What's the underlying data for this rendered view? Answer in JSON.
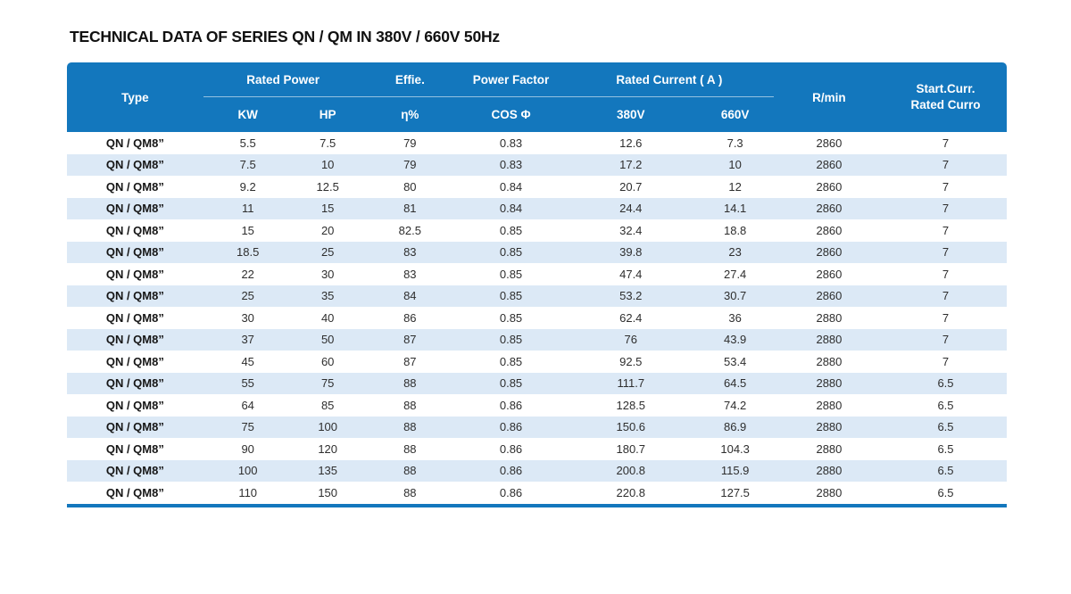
{
  "title": "TECHNICAL DATA OF SERIES QN / QM IN 380V / 660V 50Hz",
  "colors": {
    "header_blue": "#1377BD",
    "stripe_light_blue": "#DCE9F6",
    "bottom_rule_blue": "#1377BD",
    "header_text": "#FFFFFF",
    "body_text": "#2E2E2E"
  },
  "table": {
    "group_headers": {
      "type": "Type",
      "rated_power": "Rated Power",
      "effie": "Effie.",
      "power_factor": "Power Factor",
      "rated_current": "Rated Current ( A )",
      "rpm": "R/min",
      "start_curr_line1": "Start.Curr.",
      "start_curr_line2": "Rated Curro"
    },
    "sub_headers": {
      "kw": "KW",
      "hp": "HP",
      "eta": "η%",
      "cos_phi": "COS Φ",
      "v380": "380V",
      "v660": "660V"
    },
    "rows": [
      [
        "QN / QM8”",
        "5.5",
        "7.5",
        "79",
        "0.83",
        "12.6",
        "7.3",
        "2860",
        "7"
      ],
      [
        "QN / QM8”",
        "7.5",
        "10",
        "79",
        "0.83",
        "17.2",
        "10",
        "2860",
        "7"
      ],
      [
        "QN / QM8”",
        "9.2",
        "12.5",
        "80",
        "0.84",
        "20.7",
        "12",
        "2860",
        "7"
      ],
      [
        "QN / QM8”",
        "11",
        "15",
        "81",
        "0.84",
        "24.4",
        "14.1",
        "2860",
        "7"
      ],
      [
        "QN / QM8”",
        "15",
        "20",
        "82.5",
        "0.85",
        "32.4",
        "18.8",
        "2860",
        "7"
      ],
      [
        "QN / QM8”",
        "18.5",
        "25",
        "83",
        "0.85",
        "39.8",
        "23",
        "2860",
        "7"
      ],
      [
        "QN / QM8”",
        "22",
        "30",
        "83",
        "0.85",
        "47.4",
        "27.4",
        "2860",
        "7"
      ],
      [
        "QN / QM8”",
        "25",
        "35",
        "84",
        "0.85",
        "53.2",
        "30.7",
        "2860",
        "7"
      ],
      [
        "QN / QM8”",
        "30",
        "40",
        "86",
        "0.85",
        "62.4",
        "36",
        "2880",
        "7"
      ],
      [
        "QN / QM8”",
        "37",
        "50",
        "87",
        "0.85",
        "76",
        "43.9",
        "2880",
        "7"
      ],
      [
        "QN / QM8”",
        "45",
        "60",
        "87",
        "0.85",
        "92.5",
        "53.4",
        "2880",
        "7"
      ],
      [
        "QN / QM8”",
        "55",
        "75",
        "88",
        "0.85",
        "111.7",
        "64.5",
        "2880",
        "6.5"
      ],
      [
        "QN / QM8”",
        "64",
        "85",
        "88",
        "0.86",
        "128.5",
        "74.2",
        "2880",
        "6.5"
      ],
      [
        "QN / QM8”",
        "75",
        "100",
        "88",
        "0.86",
        "150.6",
        "86.9",
        "2880",
        "6.5"
      ],
      [
        "QN / QM8”",
        "90",
        "120",
        "88",
        "0.86",
        "180.7",
        "104.3",
        "2880",
        "6.5"
      ],
      [
        "QN / QM8”",
        "100",
        "135",
        "88",
        "0.86",
        "200.8",
        "115.9",
        "2880",
        "6.5"
      ],
      [
        "QN / QM8”",
        "110",
        "150",
        "88",
        "0.86",
        "220.8",
        "127.5",
        "2880",
        "6.5"
      ]
    ]
  }
}
